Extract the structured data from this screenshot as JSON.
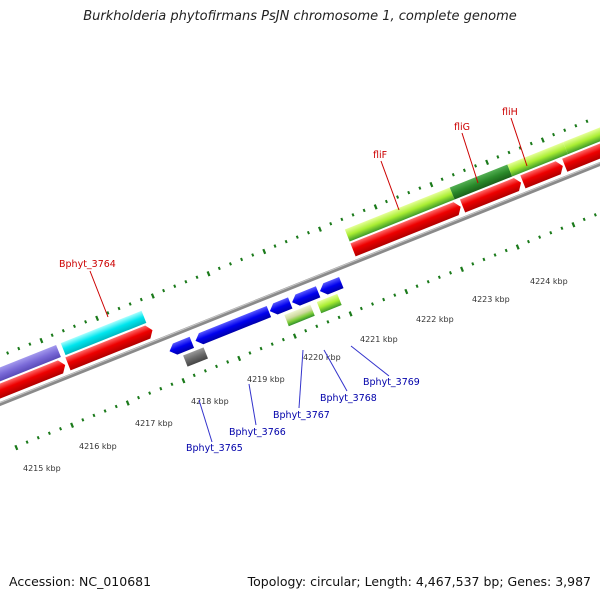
{
  "title": "Burkholderia phytofirmans PsJN chromosome 1, complete genome",
  "footer": {
    "accession": "Accession: NC_010681",
    "summary": "Topology: circular; Length: 4,467,537 bp; Genes: 3,987"
  },
  "colors": {
    "backbone": "#8a8a8a",
    "tick": "#1a7a1a",
    "forward_label": "#cc0000",
    "reverse_label": "#0000aa"
  },
  "scale_labels": [
    "4215 kbp",
    "4216 kbp",
    "4217 kbp",
    "4218 kbp",
    "4219 kbp",
    "4220 kbp",
    "4221 kbp",
    "4222 kbp",
    "4223 kbp",
    "4224 kbp"
  ],
  "gene_labels_forward": [
    "Bphyt_3764",
    "fliF",
    "fliG",
    "fliH"
  ],
  "gene_labels_reverse": [
    "Bphyt_3765",
    "Bphyt_3766",
    "Bphyt_3767",
    "Bphyt_3768",
    "Bphyt_3769"
  ]
}
